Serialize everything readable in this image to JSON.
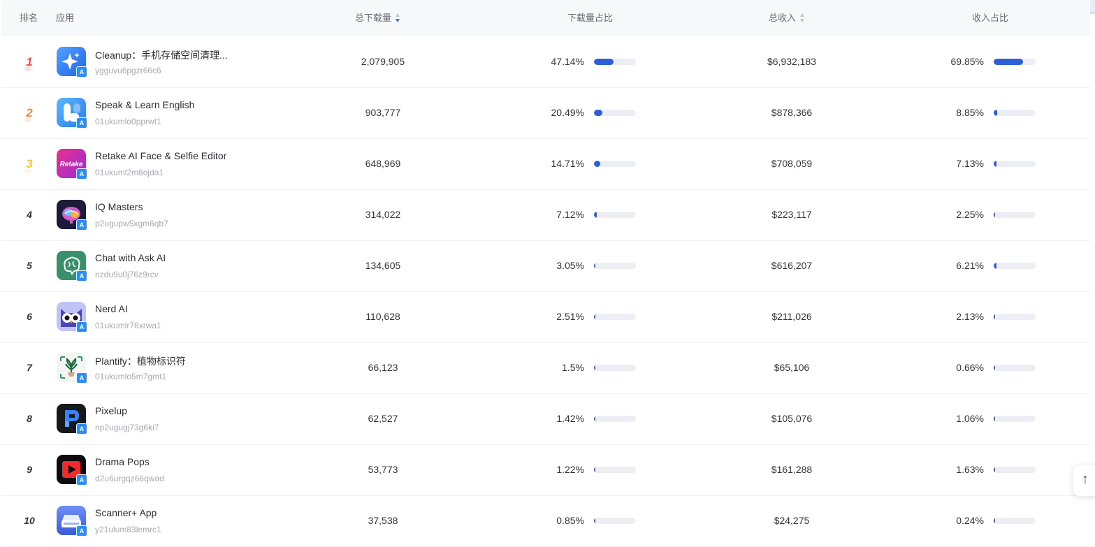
{
  "header": {
    "rank": "排名",
    "app": "应用",
    "downloads": "总下载量",
    "download_share": "下载量占比",
    "revenue": "总收入",
    "revenue_share": "收入占比"
  },
  "colors": {
    "accent_bar": "#2c5fd8",
    "rank1": "#ee4d4d",
    "rank2": "#f08a3a",
    "rank3": "#f5c431",
    "store_badge": "#2f8cf5"
  },
  "rows": [
    {
      "rank": "1",
      "name": "Cleanup：手机存储空间清理...",
      "id": "ygguvu6pgzr66c6",
      "downloads": "2,079,905",
      "dl_share": "47.14%",
      "dl_share_value": 47.14,
      "revenue": "$6,932,183",
      "rev_share": "69.85%",
      "rev_share_value": 69.85,
      "icon": "sparkle-icon"
    },
    {
      "rank": "2",
      "name": "Speak & Learn English",
      "id": "01ukumlo0pprwt1",
      "downloads": "903,777",
      "dl_share": "20.49%",
      "dl_share_value": 20.49,
      "revenue": "$878,366",
      "rev_share": "8.85%",
      "rev_share_value": 8.85,
      "icon": "speak-icon"
    },
    {
      "rank": "3",
      "name": "Retake AI Face & Selfie Editor",
      "id": "01ukuml2m8ojda1",
      "downloads": "648,969",
      "dl_share": "14.71%",
      "dl_share_value": 14.71,
      "revenue": "$708,059",
      "rev_share": "7.13%",
      "rev_share_value": 7.13,
      "icon": "retake-icon",
      "icon_text": "Retake"
    },
    {
      "rank": "4",
      "name": "IQ Masters",
      "id": "p2ugupw5xgm6qb7",
      "downloads": "314,022",
      "dl_share": "7.12%",
      "dl_share_value": 7.12,
      "revenue": "$223,117",
      "rev_share": "2.25%",
      "rev_share_value": 2.25,
      "icon": "brain-icon"
    },
    {
      "rank": "5",
      "name": "Chat with Ask AI",
      "id": "nzdu9u0j76z9rcv",
      "downloads": "134,605",
      "dl_share": "3.05%",
      "dl_share_value": 3.05,
      "revenue": "$616,207",
      "rev_share": "6.21%",
      "rev_share_value": 6.21,
      "icon": "ai-brain-icon"
    },
    {
      "rank": "6",
      "name": "Nerd AI",
      "id": "01ukumlr78xrwa1",
      "downloads": "110,628",
      "dl_share": "2.51%",
      "dl_share_value": 2.51,
      "revenue": "$211,026",
      "rev_share": "2.13%",
      "rev_share_value": 2.13,
      "icon": "owl-icon"
    },
    {
      "rank": "7",
      "name": "Plantify：植物标识符",
      "id": "01ukumlo5m7gmt1",
      "downloads": "66,123",
      "dl_share": "1.5%",
      "dl_share_value": 1.5,
      "revenue": "$65,106",
      "rev_share": "0.66%",
      "rev_share_value": 0.66,
      "icon": "plant-icon"
    },
    {
      "rank": "8",
      "name": "Pixelup",
      "id": "np2ugugj73g6ki7",
      "downloads": "62,527",
      "dl_share": "1.42%",
      "dl_share_value": 1.42,
      "revenue": "$105,076",
      "rev_share": "1.06%",
      "rev_share_value": 1.06,
      "icon": "pixelup-icon"
    },
    {
      "rank": "9",
      "name": "Drama Pops",
      "id": "d2u6urgqz66qwad",
      "downloads": "53,773",
      "dl_share": "1.22%",
      "dl_share_value": 1.22,
      "revenue": "$161,288",
      "rev_share": "1.63%",
      "rev_share_value": 1.63,
      "icon": "play-icon"
    },
    {
      "rank": "10",
      "name": "Scanner+ App",
      "id": "y21ulum83lemrc1",
      "downloads": "37,538",
      "dl_share": "0.85%",
      "dl_share_value": 0.85,
      "revenue": "$24,275",
      "rev_share": "0.24%",
      "rev_share_value": 0.24,
      "icon": "scanner-icon"
    }
  ]
}
